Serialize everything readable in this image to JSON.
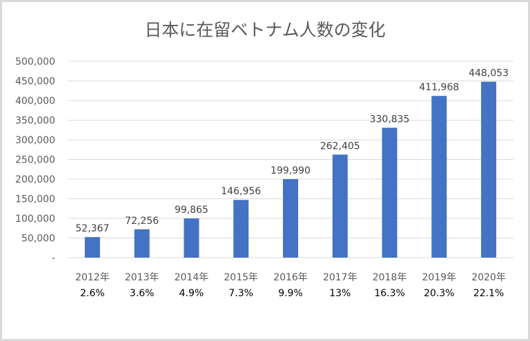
{
  "chart_data": {
    "type": "bar",
    "title": "日本に在留ベトナム人数の変化",
    "categories": [
      "2012年",
      "2013年",
      "2014年",
      "2015年",
      "2016年",
      "2017年",
      "2018年",
      "2019年",
      "2020年"
    ],
    "values": [
      52367,
      72256,
      99865,
      146956,
      199990,
      262405,
      330835,
      411968,
      448053
    ],
    "value_labels": [
      "52,367",
      "72,256",
      "99,865",
      "146,956",
      "199,990",
      "262,405",
      "330,835",
      "411,968",
      "448,053"
    ],
    "growth_labels": [
      "2.6%",
      "3.6%",
      "4.9%",
      "7.3%",
      "9.9%",
      "13%",
      "16.3%",
      "20.3%",
      "22.1%"
    ],
    "yticks": [
      "-",
      "50,000",
      "100,000",
      "150,000",
      "200,000",
      "250,000",
      "300,000",
      "350,000",
      "400,000",
      "450,000",
      "500,000"
    ],
    "ytick_values": [
      0,
      50000,
      100000,
      150000,
      200000,
      250000,
      300000,
      350000,
      400000,
      450000,
      500000
    ],
    "ylim": [
      0,
      500000
    ],
    "xlabel": "",
    "ylabel": "",
    "grid": true,
    "legend": "none",
    "colors": {
      "bar": "#4472c4",
      "grid": "#d9d9d9",
      "axis_text": "#595959",
      "title": "#595959",
      "growth_text": "#000000"
    }
  }
}
